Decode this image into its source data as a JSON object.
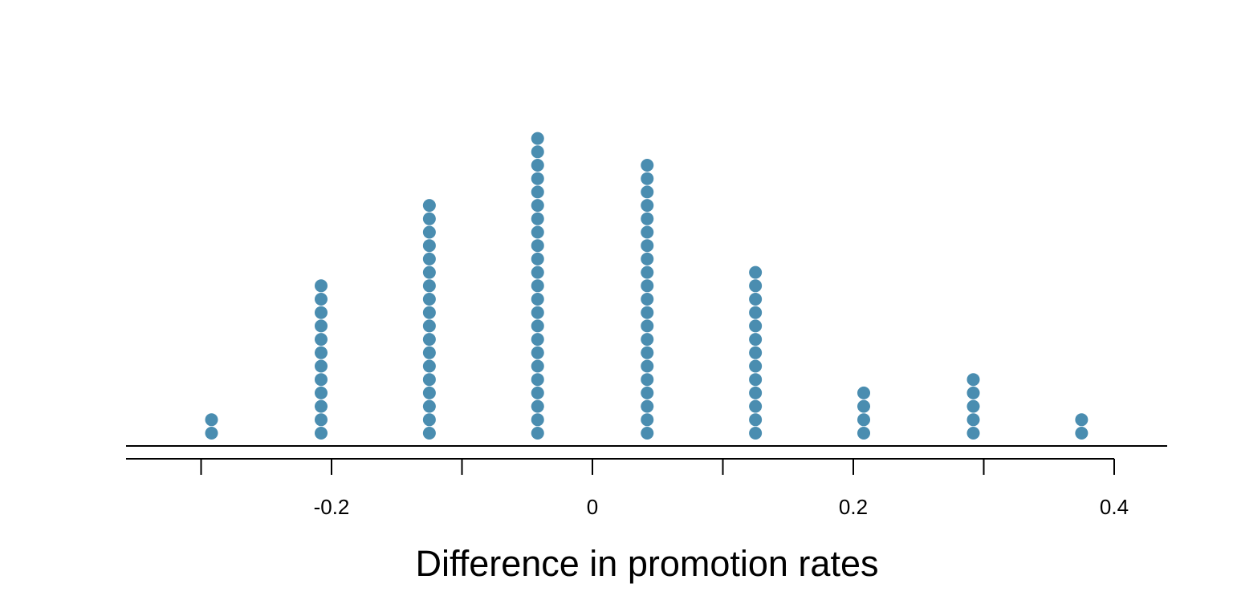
{
  "chart_data": {
    "type": "scatter",
    "subtype": "dot-plot",
    "title": "",
    "xlabel": "Difference in promotion rates",
    "ylabel": "",
    "xlim": [
      -0.35,
      0.45
    ],
    "x_ticks": [
      -0.3,
      -0.2,
      -0.1,
      0,
      0.1,
      0.2,
      0.3,
      0.4
    ],
    "x_tick_labels": [
      "-0.2",
      "0",
      "0.2",
      "0.4"
    ],
    "x_tick_label_values": [
      -0.2,
      0,
      0.2,
      0.4
    ],
    "grid": false,
    "legend": "none",
    "point_color": "#4a8db0",
    "x": [
      -0.292,
      -0.208,
      -0.125,
      -0.042,
      0.042,
      0.125,
      0.208,
      0.292,
      0.375
    ],
    "counts": [
      2,
      12,
      18,
      23,
      21,
      13,
      4,
      5,
      2
    ]
  }
}
